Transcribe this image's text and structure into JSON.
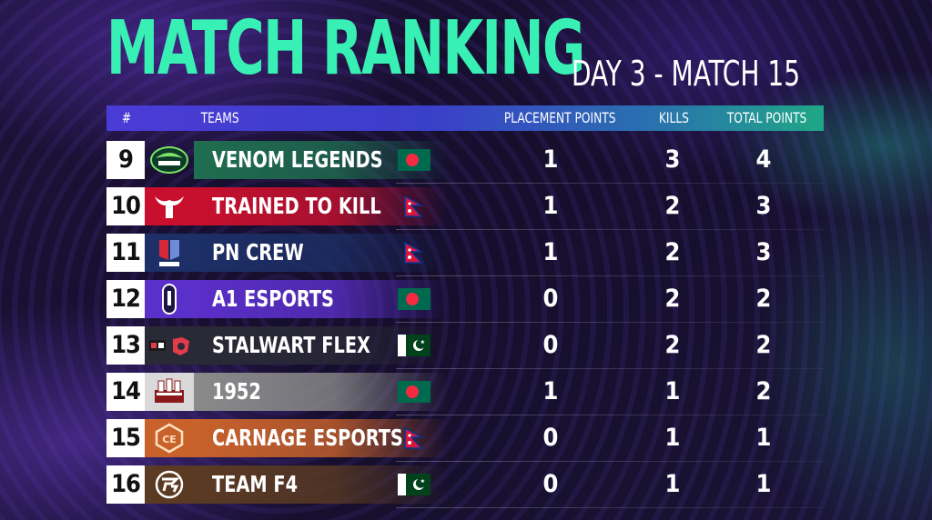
{
  "title": "MATCH RANKING",
  "subtitle": "DAY 3 - MATCH 15",
  "headers": {
    "rank": "#",
    "teams": "TEAMS",
    "placement": "PLACEMENT POINTS",
    "kills": "KILLS",
    "total": "TOTAL POINTS"
  },
  "colors": {
    "accent": "#39f0b4",
    "header_start": "#4b3bd6",
    "header_end": "#1fa786"
  },
  "rows": [
    {
      "rank": "9",
      "team": "VENOM LEGENDS",
      "flag": "bangladesh-flag",
      "placement": "1",
      "kills": "3",
      "total": "4",
      "band": "#1f6e50"
    },
    {
      "rank": "10",
      "team": "TRAINED TO KILL",
      "flag": "nepal-flag",
      "placement": "1",
      "kills": "2",
      "total": "3",
      "band": "#c8102e"
    },
    {
      "rank": "11",
      "team": "PN CREW",
      "flag": "nepal-flag",
      "placement": "1",
      "kills": "2",
      "total": "3",
      "band": "#1c2f66"
    },
    {
      "rank": "12",
      "team": "A1 ESPORTS",
      "flag": "bangladesh-flag",
      "placement": "0",
      "kills": "2",
      "total": "2",
      "band": "#5b2fc9"
    },
    {
      "rank": "13",
      "team": "STALWART FLEX",
      "flag": "pakistan-flag",
      "placement": "0",
      "kills": "2",
      "total": "2",
      "band": "#2a2a36"
    },
    {
      "rank": "14",
      "team": "1952",
      "flag": "bangladesh-flag",
      "placement": "1",
      "kills": "1",
      "total": "2",
      "band": "#8a8a8a"
    },
    {
      "rank": "15",
      "team": "CARNAGE ESPORTS",
      "flag": "nepal-flag",
      "placement": "0",
      "kills": "1",
      "total": "1",
      "band": "#c8622a"
    },
    {
      "rank": "16",
      "team": "TEAM F4",
      "flag": "pakistan-flag",
      "placement": "0",
      "kills": "1",
      "total": "1",
      "band": "#5a3a22"
    }
  ]
}
